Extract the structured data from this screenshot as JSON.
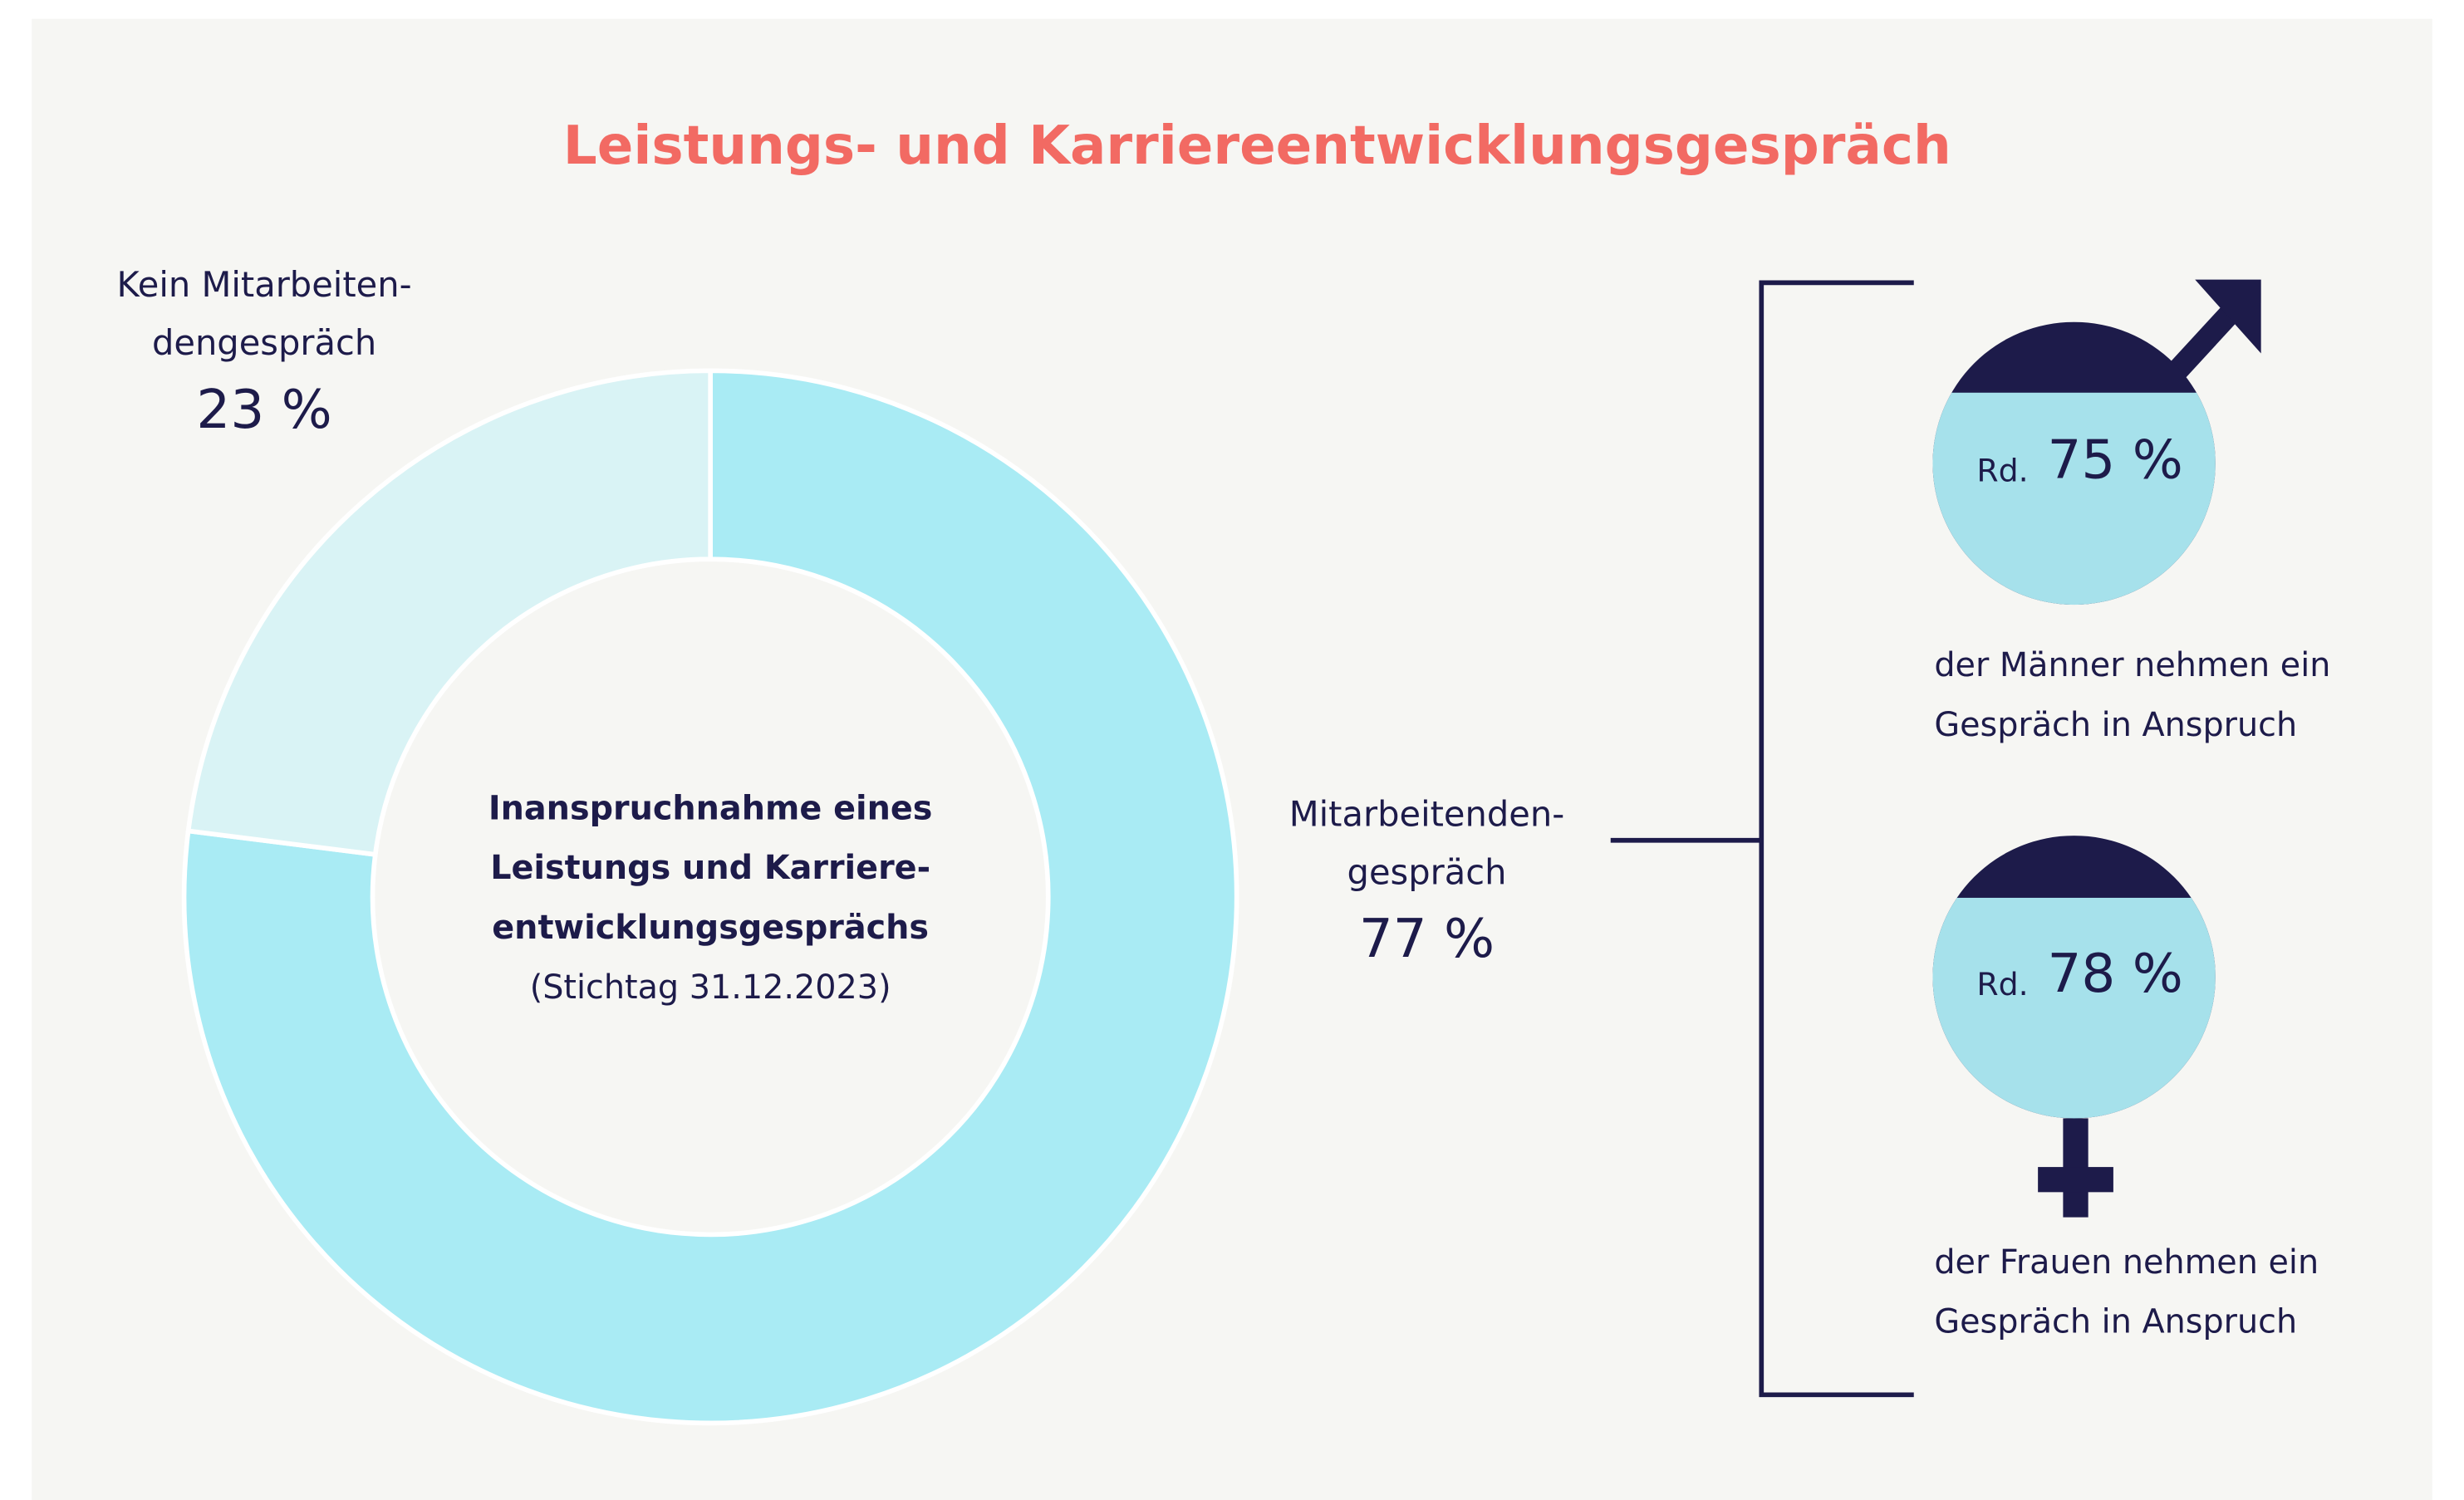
{
  "chart_data": {
    "type": "donut",
    "title": "Leistungs- und Karriereentwicklungsgespräch",
    "center_text": [
      "Inanspruchnahme eines",
      "Leistungs und Karriere-",
      "entwicklungsgesprächs",
      "(Stichtag 31.12.2023)"
    ],
    "categories": [
      [
        "Mitarbeitenden-",
        "gespräch"
      ],
      [
        "Kein Mitarbeiten-",
        "dengespräch"
      ]
    ],
    "values": [
      77,
      23
    ],
    "value_labels": [
      "77 %",
      "23 %"
    ],
    "colors": [
      "#a9ebf4",
      "#d9f3f5"
    ],
    "breakdown": [
      {
        "prefix": "Rd.",
        "value": 75,
        "value_label": "75 %",
        "caption": [
          "der Männer nehmen ein",
          "Gespräch in Anspruch"
        ]
      },
      {
        "prefix": "Rd.",
        "value": 78,
        "value_label": "78 %",
        "caption": [
          "der Frauen nehmen ein",
          "Gespräch in Anspruch"
        ]
      }
    ]
  }
}
